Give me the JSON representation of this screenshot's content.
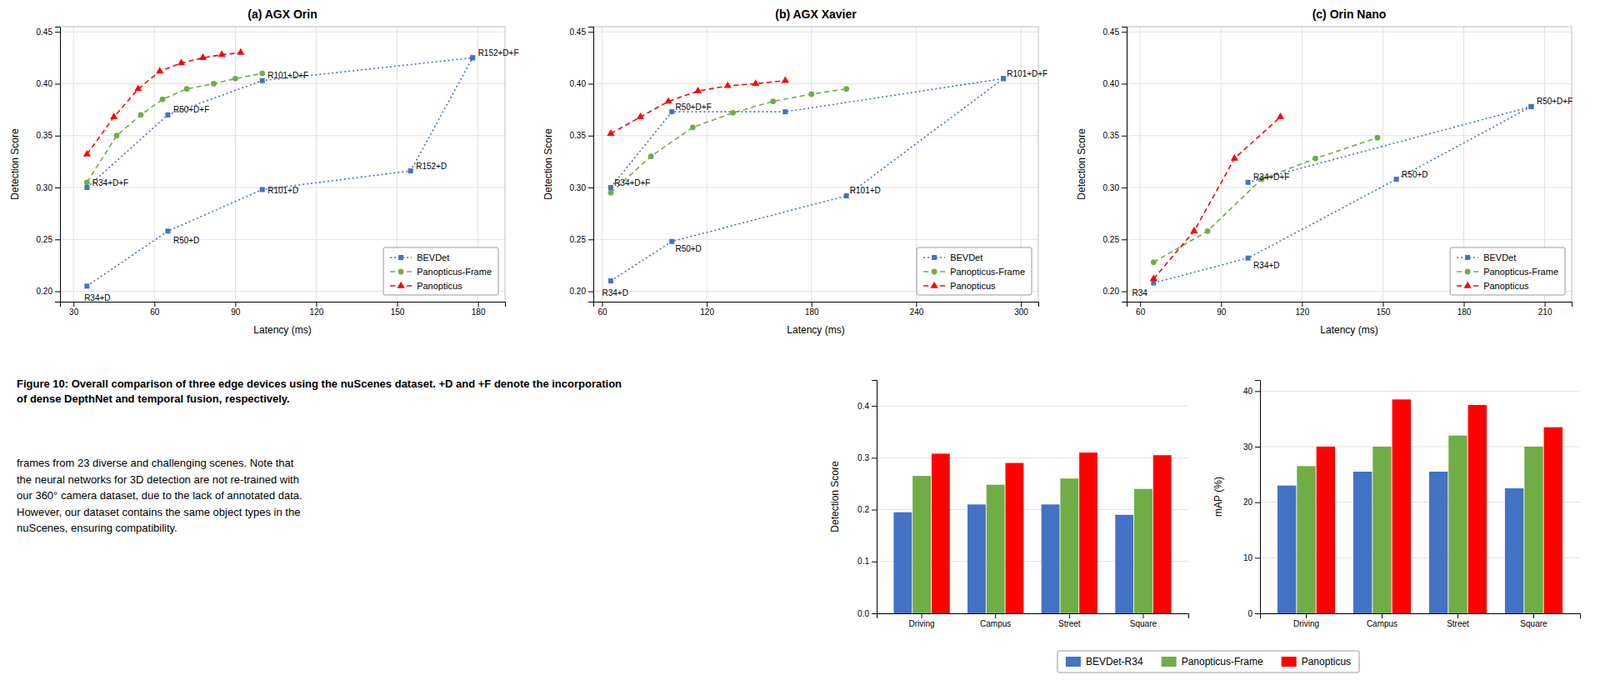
{
  "chart_data": [
    {
      "type": "line",
      "title": "(a) AGX Orin",
      "x_label": "Latency (ms)",
      "y_label": "Detection Score",
      "xlim": [
        25,
        190
      ],
      "ylim": [
        0.19,
        0.455
      ],
      "xticks": [
        30,
        60,
        90,
        120,
        150,
        180
      ],
      "yticks": [
        {
          "value": 0.2,
          "label": "0.20"
        },
        0.25,
        {
          "value": 0.3,
          "label": "0.30"
        },
        0.35,
        {
          "value": 0.4,
          "label": "0.40"
        },
        0.45
      ],
      "grid": true,
      "legend": "lower right",
      "series": [
        {
          "name": "BEVDet",
          "color": "#4472c4",
          "line_style": "dotted",
          "marker": "square",
          "x": [
            35,
            65,
            100,
            155,
            178
          ],
          "values": [
            0.205,
            0.258,
            0.298,
            0.316,
            0.425
          ]
        },
        {
          "name": "BEVDet",
          "color": "#4472c4",
          "line_style": "dotted",
          "marker": "square",
          "x": [
            35,
            65,
            100,
            178
          ],
          "values": [
            0.3,
            0.37,
            0.403,
            0.425
          ]
        },
        {
          "name": "Panopticus-Frame",
          "color": "#70ad47",
          "line_style": "dashed",
          "marker": "circle",
          "x": [
            35,
            46,
            55,
            63,
            72,
            82,
            90,
            100
          ],
          "values": [
            0.305,
            0.35,
            0.37,
            0.385,
            0.395,
            0.4,
            0.405,
            0.41
          ]
        },
        {
          "name": "Panopticus",
          "color": "#ff0000",
          "line_style": "dashed",
          "marker": "triangle",
          "x": [
            35,
            45,
            54,
            62,
            70,
            78,
            85,
            92
          ],
          "values": [
            0.332,
            0.368,
            0.395,
            0.412,
            0.42,
            0.425,
            0.428,
            0.43
          ]
        }
      ],
      "annotations": [
        {
          "text": "R34+D",
          "x": 34,
          "y": 0.191
        },
        {
          "text": "R50+D",
          "x": 67,
          "y": 0.246
        },
        {
          "text": "R101+D",
          "x": 102,
          "y": 0.294
        },
        {
          "text": "R152+D",
          "x": 157,
          "y": 0.318
        },
        {
          "text": "R34+D+F",
          "x": 37,
          "y": 0.302
        },
        {
          "text": "R50+D+F",
          "x": 67,
          "y": 0.372
        },
        {
          "text": "R101+D+F",
          "x": 102,
          "y": 0.405
        },
        {
          "text": "R152+D+F",
          "x": 180,
          "y": 0.427
        }
      ]
    },
    {
      "type": "line",
      "title": "(b) AGX Xavier",
      "x_label": "Latency (ms)",
      "y_label": "Detection Score",
      "xlim": [
        55,
        310
      ],
      "ylim": [
        0.19,
        0.455
      ],
      "xticks": [
        60,
        120,
        180,
        240,
        300
      ],
      "yticks": [
        {
          "value": 0.2,
          "label": "0.20"
        },
        0.25,
        {
          "value": 0.3,
          "label": "0.30"
        },
        0.35,
        {
          "value": 0.4,
          "label": "0.40"
        },
        0.45
      ],
      "grid": true,
      "legend": "lower right",
      "series": [
        {
          "name": "BEVDet",
          "color": "#4472c4",
          "line_style": "dotted",
          "marker": "square",
          "x": [
            65,
            100,
            200,
            290
          ],
          "values": [
            0.21,
            0.248,
            0.292,
            0.405
          ]
        },
        {
          "name": "BEVDet",
          "color": "#4472c4",
          "line_style": "dotted",
          "marker": "square",
          "x": [
            65,
            100,
            165,
            290
          ],
          "values": [
            0.3,
            0.373,
            0.373,
            0.405
          ]
        },
        {
          "name": "Panopticus-Frame",
          "color": "#70ad47",
          "line_style": "dashed",
          "marker": "circle",
          "x": [
            65,
            88,
            112,
            135,
            158,
            180,
            200
          ],
          "values": [
            0.295,
            0.33,
            0.358,
            0.372,
            0.383,
            0.39,
            0.395
          ]
        },
        {
          "name": "Panopticus",
          "color": "#ff0000",
          "line_style": "dashed",
          "marker": "triangle",
          "x": [
            65,
            82,
            98,
            115,
            132,
            148,
            165
          ],
          "values": [
            0.352,
            0.368,
            0.383,
            0.393,
            0.398,
            0.4,
            0.403
          ]
        }
      ],
      "annotations": [
        {
          "text": "R34+D",
          "x": 60,
          "y": 0.196
        },
        {
          "text": "R50+D",
          "x": 102,
          "y": 0.238
        },
        {
          "text": "R101+D",
          "x": 202,
          "y": 0.294
        },
        {
          "text": "R34+D+F",
          "x": 67,
          "y": 0.302
        },
        {
          "text": "R50+D+F",
          "x": 102,
          "y": 0.375
        },
        {
          "text": "R101+D+F",
          "x": 292,
          "y": 0.407
        }
      ]
    },
    {
      "type": "line",
      "title": "(c) Orin Nano",
      "x_label": "Latency (ms)",
      "y_label": "Detection Score",
      "xlim": [
        55,
        220
      ],
      "ylim": [
        0.19,
        0.455
      ],
      "xticks": [
        60,
        90,
        120,
        150,
        180,
        210
      ],
      "yticks": [
        {
          "value": 0.2,
          "label": "0.20"
        },
        0.25,
        {
          "value": 0.3,
          "label": "0.30"
        },
        0.35,
        {
          "value": 0.4,
          "label": "0.40"
        },
        0.45
      ],
      "grid": true,
      "legend": "lower right",
      "series": [
        {
          "name": "BEVDet",
          "color": "#4472c4",
          "line_style": "dotted",
          "marker": "square",
          "x": [
            65,
            100,
            155,
            205
          ],
          "values": [
            0.208,
            0.232,
            0.308,
            0.378
          ]
        },
        {
          "name": "BEVDet",
          "color": "#4472c4",
          "line_style": "dotted",
          "marker": "square",
          "x": [
            100,
            205
          ],
          "values": [
            0.305,
            0.378
          ]
        },
        {
          "name": "Panopticus-Frame",
          "color": "#70ad47",
          "line_style": "dashed",
          "marker": "circle",
          "x": [
            65,
            85,
            105,
            125,
            148
          ],
          "values": [
            0.228,
            0.258,
            0.308,
            0.328,
            0.348
          ]
        },
        {
          "name": "Panopticus",
          "color": "#ff0000",
          "line_style": "dashed",
          "marker": "triangle",
          "x": [
            65,
            80,
            95,
            112
          ],
          "values": [
            0.212,
            0.258,
            0.328,
            0.368
          ]
        }
      ],
      "annotations": [
        {
          "text": "R34",
          "x": 57,
          "y": 0.196
        },
        {
          "text": "R34+D",
          "x": 102,
          "y": 0.222
        },
        {
          "text": "R50+D",
          "x": 157,
          "y": 0.31
        },
        {
          "text": "R50+D+F",
          "x": 207,
          "y": 0.38
        },
        {
          "text": "R34+D+F",
          "x": 102,
          "y": 0.307
        }
      ]
    },
    {
      "type": "bar",
      "y_label": "Detection Score",
      "categories": [
        "Driving",
        "Campus",
        "Street",
        "Square"
      ],
      "ylim": [
        0.0,
        0.45
      ],
      "yticks": [
        {
          "value": 0.0,
          "label": "0.0"
        },
        0.1,
        0.2,
        0.3,
        0.4
      ],
      "grid": true,
      "series": [
        {
          "name": "BEVDet-R34",
          "color": "#4472c4",
          "values": [
            0.195,
            0.21,
            0.21,
            0.19
          ]
        },
        {
          "name": "Panopticus-Frame",
          "color": "#70ad47",
          "values": [
            0.265,
            0.248,
            0.26,
            0.24
          ]
        },
        {
          "name": "Panopticus",
          "color": "#ff0000",
          "values": [
            0.308,
            0.29,
            0.31,
            0.305
          ]
        }
      ]
    },
    {
      "type": "bar",
      "y_label": "mAP (%)",
      "categories": [
        "Driving",
        "Campus",
        "Street",
        "Square"
      ],
      "ylim": [
        0,
        42
      ],
      "yticks": [
        0,
        10,
        20,
        30,
        40
      ],
      "grid": true,
      "legend": "bottom",
      "series": [
        {
          "name": "BEVDet-R34",
          "color": "#4472c4",
          "values": [
            23.0,
            25.5,
            25.5,
            22.5
          ]
        },
        {
          "name": "Panopticus-Frame",
          "color": "#70ad47",
          "values": [
            26.5,
            30.0,
            32.0,
            30.0
          ]
        },
        {
          "name": "Panopticus",
          "color": "#ff0000",
          "values": [
            30.0,
            38.5,
            37.5,
            33.5
          ]
        }
      ]
    }
  ],
  "caption": "Figure 10: Overall comparison of three edge devices using the nuScenes dataset. +D and +F denote the incorporation\nof dense DepthNet and temporal fusion, respectively.",
  "body_text": "frames from 23 diverse and challenging scenes. Note that\nthe neural networks for 3D detection are not re-trained with\nour 360° camera dataset, due to the lack of annotated data.\nHowever, our dataset contains the same object types in the\nnuScenes, ensuring compatibility."
}
